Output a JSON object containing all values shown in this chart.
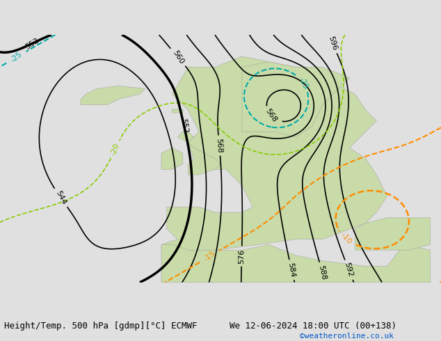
{
  "title_left": "Height/Temp. 500 hPa [gdmp][°C] ECMWF",
  "title_right": "We 12-06-2024 18:00 UTC (00+138)",
  "credit": "©weatheronline.co.uk",
  "background_color": "#e0e0e0",
  "land_color": "#c8dba8",
  "sea_color": "#dde8f4",
  "temp_warm_color": "#ff8c00",
  "temp_cold_color": "#00aaaa",
  "temp_red_color": "#cc0000",
  "temp_green_color": "#88cc00",
  "font_size_title": 9,
  "dpi": 100,
  "figsize": [
    6.34,
    4.9
  ]
}
